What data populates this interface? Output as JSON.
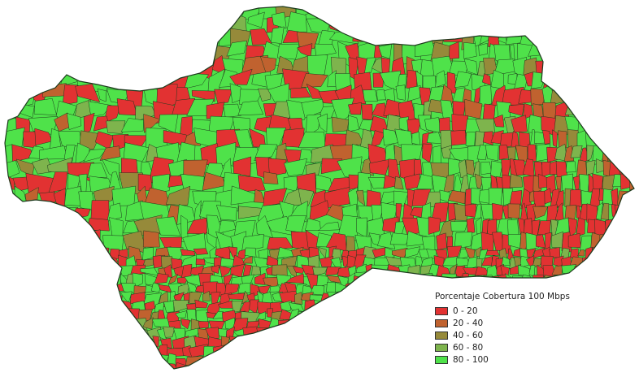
{
  "map": {
    "legend": {
      "title": "Porcentaje Cobertura 100 Mbps",
      "classes": [
        {
          "label": "0 - 20",
          "color": "#e23232"
        },
        {
          "label": "20 - 40",
          "color": "#c0622f"
        },
        {
          "label": "40 - 60",
          "color": "#968a3a"
        },
        {
          "label": "60 - 80",
          "color": "#7eb44d"
        },
        {
          "label": "80 - 100",
          "color": "#4fe24a"
        }
      ]
    },
    "region_fill": "#4fe24a",
    "border_color": "#1d3a1d"
  }
}
